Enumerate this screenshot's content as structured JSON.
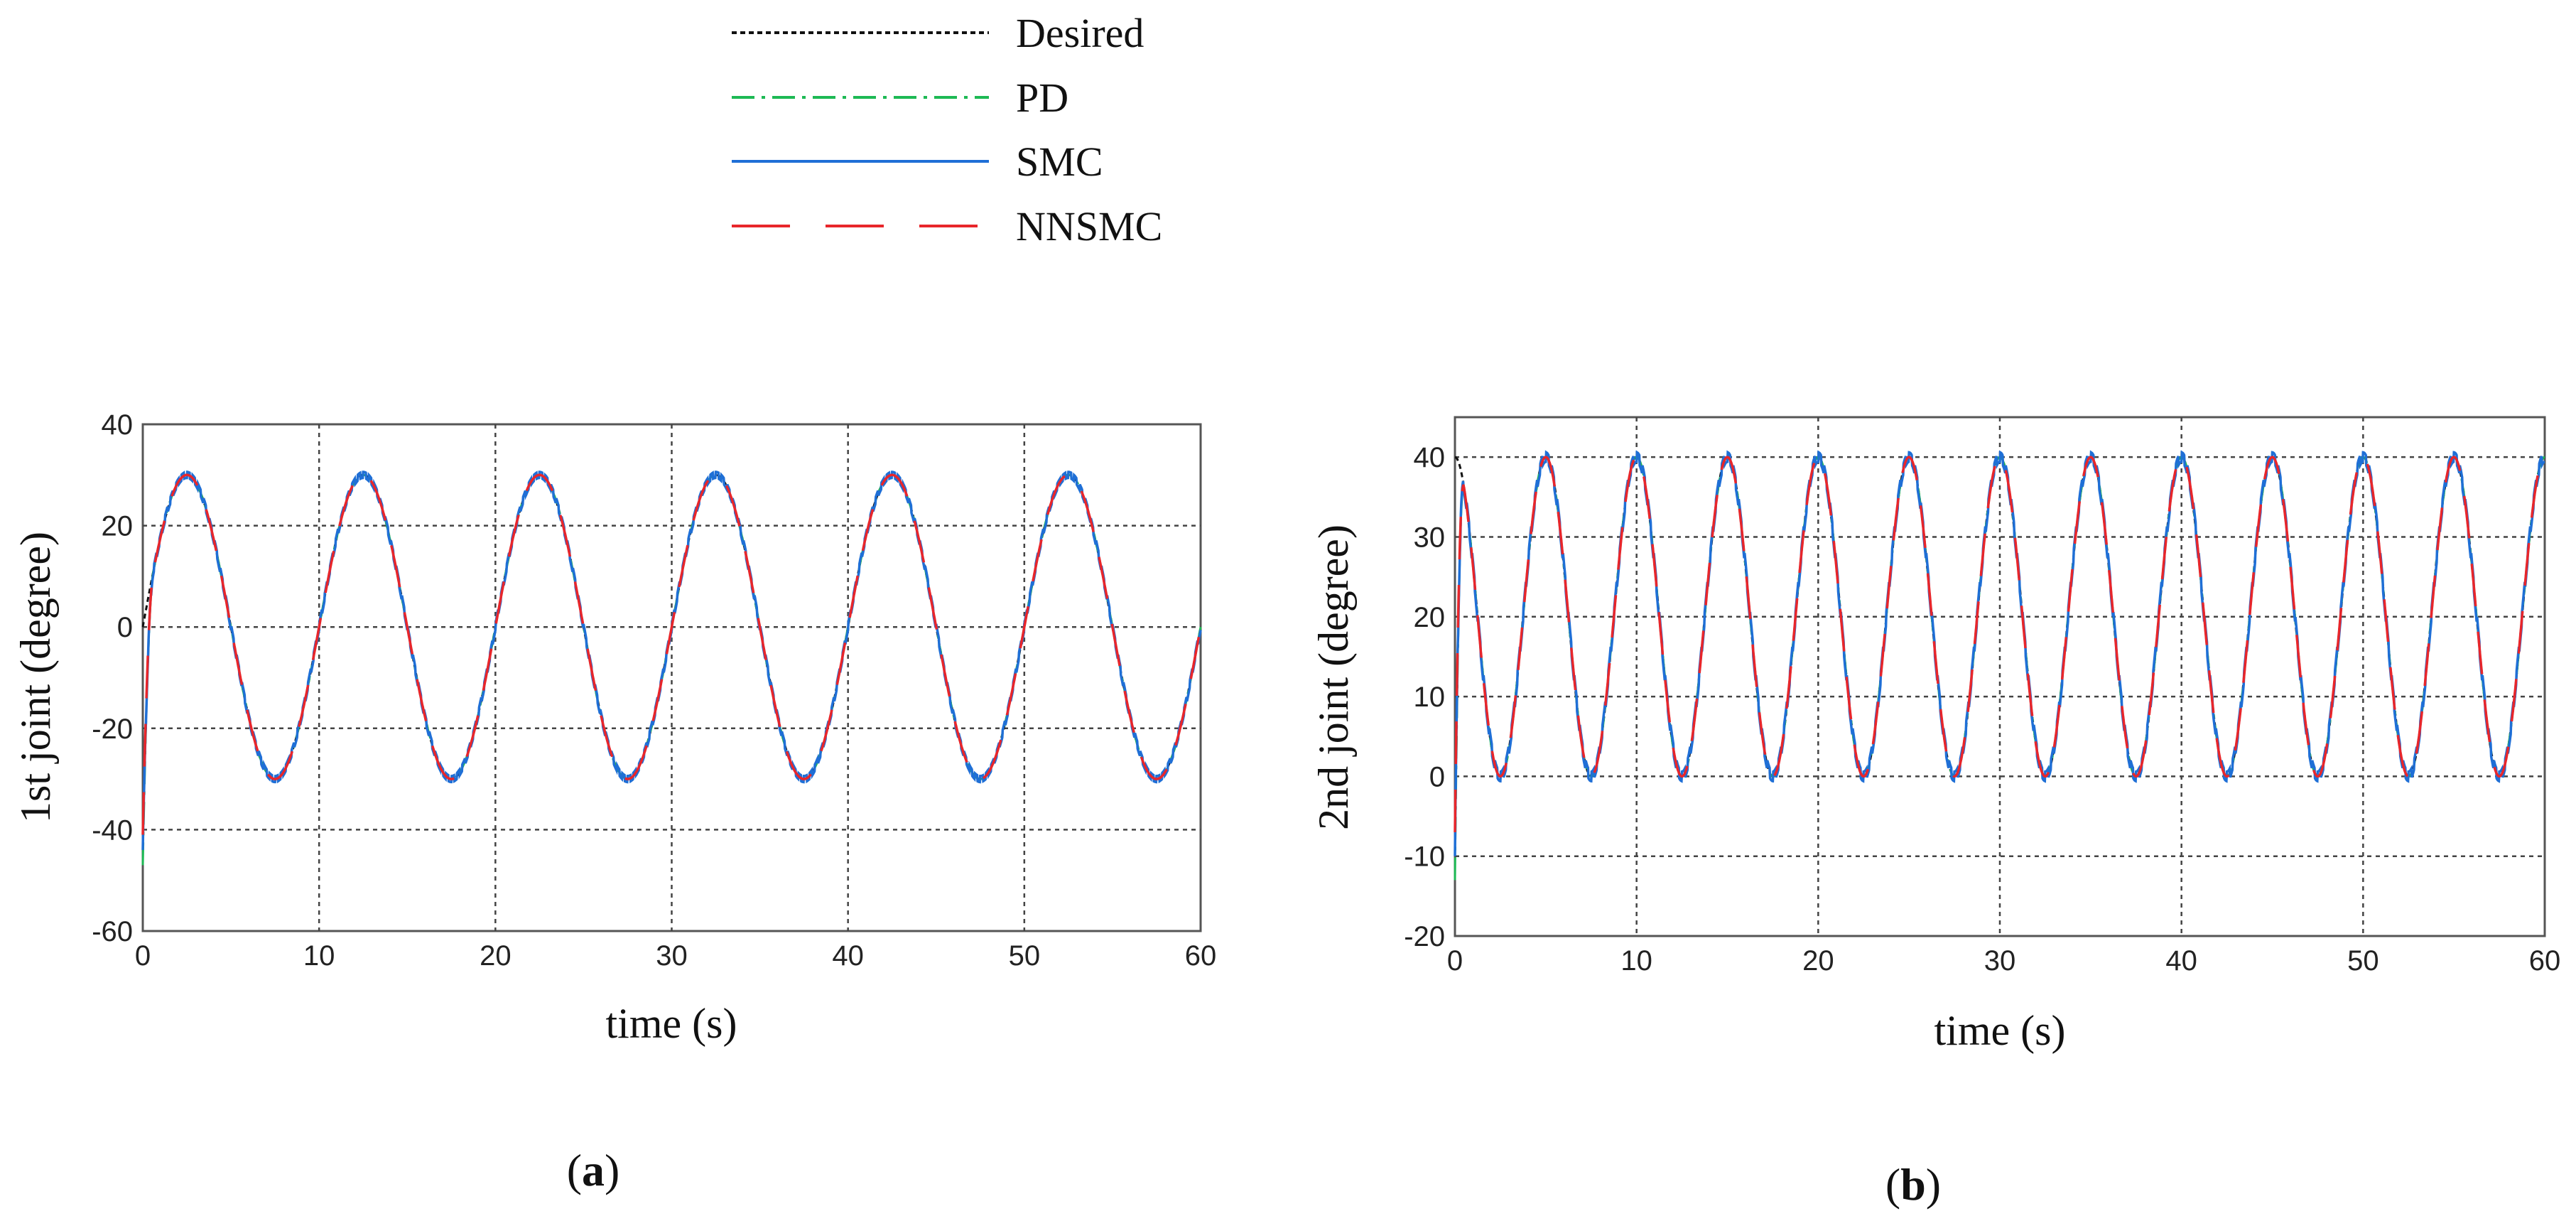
{
  "legend": [
    {
      "name": "Desired",
      "color": "#111111",
      "style": "dotted"
    },
    {
      "name": "PD",
      "color": "#1db954",
      "style": "dashdot"
    },
    {
      "name": "SMC",
      "color": "#1f6fd6",
      "style": "solid"
    },
    {
      "name": "NNSMC",
      "color": "#e8262b",
      "style": "longdash"
    }
  ],
  "chart_data": [
    {
      "type": "line",
      "panel": "a",
      "caption_open": "(",
      "caption_letter": "a",
      "caption_close": ")",
      "xlabel": "time (s)",
      "ylabel": "1st joint (degree)",
      "xlim": [
        0,
        60
      ],
      "ylim": [
        -60,
        40
      ],
      "xticks": [
        0,
        10,
        20,
        30,
        40,
        50,
        60
      ],
      "yticks": [
        -60,
        -40,
        -20,
        0,
        20,
        40
      ],
      "grid": true,
      "signal": {
        "kind": "sine",
        "amplitude": 30,
        "offset": 0,
        "period": 10,
        "phase_deg": 0
      },
      "transient": {
        "start_value": -50,
        "duration_s": 0.6
      },
      "series": [
        "Desired",
        "PD",
        "SMC",
        "NNSMC"
      ]
    },
    {
      "type": "line",
      "panel": "b",
      "caption_open": "(",
      "caption_letter": "b",
      "caption_close": ")",
      "xlabel": "time (s)",
      "ylabel": "2nd joint (degree)",
      "xlim": [
        0,
        60
      ],
      "ylim": [
        -20,
        45
      ],
      "xticks": [
        0,
        10,
        20,
        30,
        40,
        50,
        60
      ],
      "yticks": [
        -20,
        -10,
        0,
        10,
        20,
        30,
        40
      ],
      "grid": true,
      "signal": {
        "kind": "sine",
        "amplitude": 20,
        "offset": 20,
        "period": 5,
        "phase_deg": 90
      },
      "transient": {
        "start_value": -16,
        "duration_s": 0.5
      },
      "series": [
        "Desired",
        "PD",
        "SMC",
        "NNSMC"
      ]
    }
  ]
}
